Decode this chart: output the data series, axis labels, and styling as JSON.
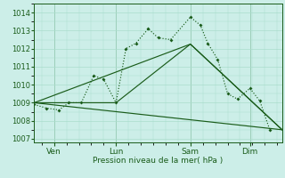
{
  "background_color": "#cceee8",
  "grid_color": "#aaddcc",
  "line_color": "#1a5c1a",
  "x_tick_labels": [
    "Ven",
    "Lun",
    "Sam",
    "Dim"
  ],
  "x_tick_positions": [
    0.08,
    0.33,
    0.63,
    0.87
  ],
  "xlabel": "Pression niveau de la mer( hPa )",
  "ylim": [
    1006.8,
    1014.5
  ],
  "yticks": [
    1007,
    1008,
    1009,
    1010,
    1011,
    1012,
    1013,
    1014
  ],
  "series_main_x": [
    0.0,
    0.05,
    0.1,
    0.14,
    0.19,
    0.24,
    0.28,
    0.33,
    0.37,
    0.41,
    0.46,
    0.5,
    0.55,
    0.63,
    0.67,
    0.7,
    0.74,
    0.78,
    0.82,
    0.87,
    0.91,
    0.95
  ],
  "series_main_y": [
    1008.9,
    1008.7,
    1008.6,
    1009.0,
    1009.0,
    1010.5,
    1010.3,
    1009.0,
    1012.0,
    1012.3,
    1013.1,
    1012.6,
    1012.5,
    1013.75,
    1013.3,
    1012.3,
    1011.4,
    1009.5,
    1009.2,
    1009.8,
    1009.1,
    1007.5
  ],
  "line1_x": [
    0.0,
    1.0
  ],
  "line1_y": [
    1009.0,
    1007.5
  ],
  "line2_x": [
    0.0,
    0.63,
    1.0
  ],
  "line2_y": [
    1009.0,
    1012.25,
    1007.5
  ],
  "line3_x": [
    0.0,
    0.33,
    0.63,
    1.0
  ],
  "line3_y": [
    1009.0,
    1009.0,
    1012.25,
    1007.5
  ],
  "xlim": [
    0.0,
    1.0
  ]
}
